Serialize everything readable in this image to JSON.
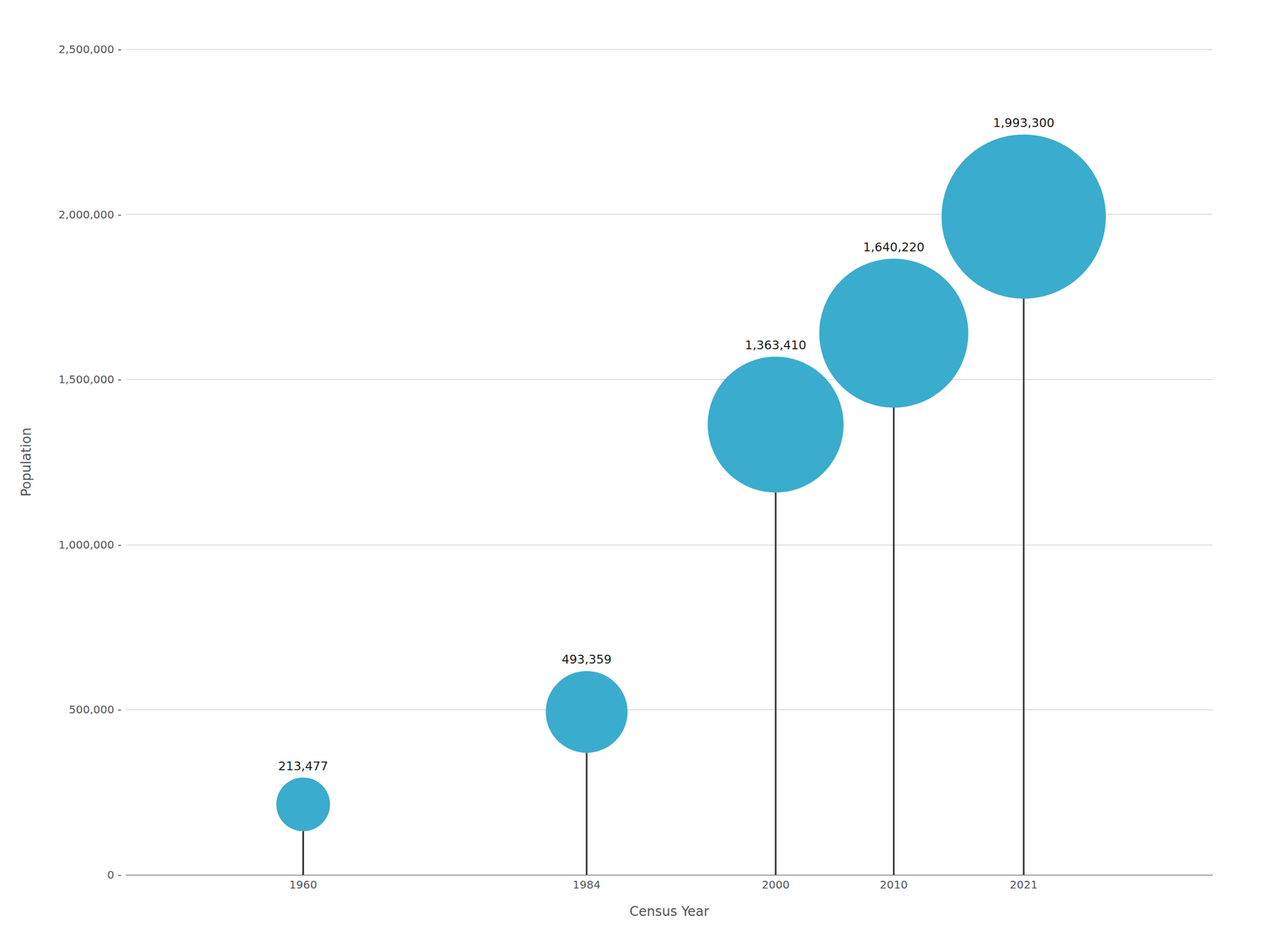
{
  "chart_data": {
    "type": "lollipop",
    "x": [
      1960,
      1984,
      2000,
      2010,
      2021
    ],
    "values": [
      213477,
      493359,
      1363410,
      1640220,
      1993300
    ],
    "value_labels": [
      "213,477",
      "493,359",
      "1,363,410",
      "1,640,220",
      "1,993,300"
    ],
    "data_labels": true,
    "color": "#3aacce",
    "xlabel": "Census Year",
    "ylabel": "Population",
    "xlim": [
      1945,
      2037
    ],
    "xticks": [
      1960,
      1984,
      2000,
      2010,
      2021
    ],
    "ylim": [
      0,
      2500000
    ],
    "yticks": [
      {
        "value": 0,
        "label": "0 -"
      },
      {
        "value": 500000,
        "label": "500,000 -"
      },
      {
        "value": 1000000,
        "label": "1,000,000 -"
      },
      {
        "value": 1500000,
        "label": "1,500,000 -"
      },
      {
        "value": 2000000,
        "label": "2,000,000 -"
      },
      {
        "value": 2500000,
        "label": "2,500,000 -"
      }
    ],
    "grid": true
  }
}
